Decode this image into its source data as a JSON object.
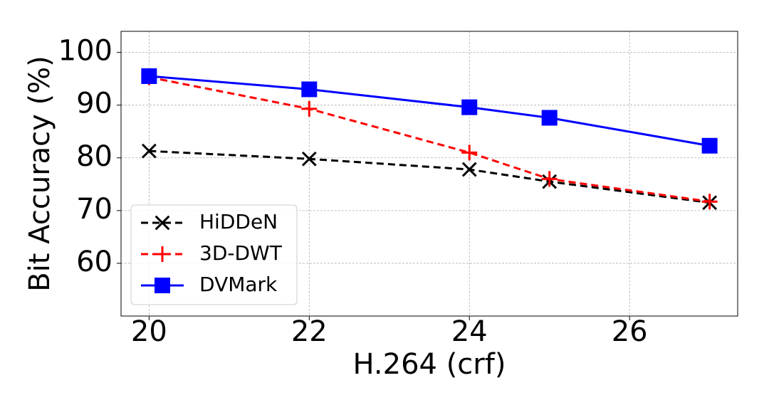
{
  "chart_data": {
    "type": "line",
    "x_label": "H.264 (crf)",
    "y_label": "Bit Accuracy (%)",
    "x": [
      20,
      22,
      24,
      25,
      27
    ],
    "series": [
      {
        "name": "HiDDeN",
        "color": "#000000",
        "marker": "x",
        "dash": "dashed",
        "values": [
          81.3,
          79.8,
          77.8,
          75.5,
          71.5
        ]
      },
      {
        "name": "3D-DWT",
        "color": "#ff0000",
        "marker": "plus",
        "dash": "dashed",
        "values": [
          95.3,
          89.3,
          81.0,
          76.0,
          71.7
        ]
      },
      {
        "name": "DVMark",
        "color": "#0000ff",
        "marker": "square",
        "dash": "solid",
        "values": [
          95.5,
          93.0,
          89.6,
          87.6,
          82.3
        ]
      }
    ],
    "xlim": [
      19.65,
      27.35
    ],
    "ylim": [
      50,
      104
    ],
    "xticks": [
      20,
      22,
      24,
      26
    ],
    "yticks": [
      60,
      70,
      80,
      90,
      100
    ],
    "grid": true,
    "legend": "lower left"
  }
}
